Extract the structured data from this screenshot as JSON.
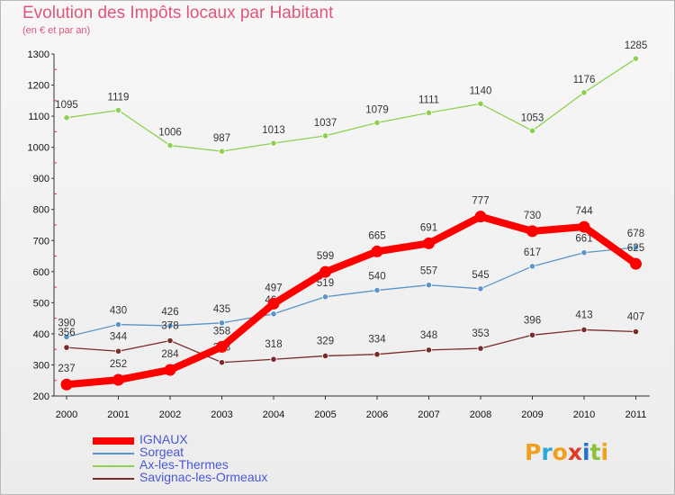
{
  "title": "Evolution des Impôts locaux par Habitant",
  "subtitle": "(en € et par an)",
  "logo": {
    "letters": [
      "P",
      "r",
      "o",
      "x",
      "i",
      "t",
      "i"
    ],
    "colors": [
      "#f0a020",
      "#2fa8d8",
      "#f0a020",
      "#e23a2a",
      "#1f74c8",
      "#8ac23c",
      "#f0a020"
    ]
  },
  "chart_data": {
    "type": "line",
    "x": [
      "2000",
      "2001",
      "2002",
      "2003",
      "2004",
      "2005",
      "2006",
      "2007",
      "2008",
      "2009",
      "2010",
      "2011"
    ],
    "ylim": [
      200,
      1300
    ],
    "yticks": [
      200,
      300,
      400,
      500,
      600,
      700,
      800,
      900,
      1000,
      1100,
      1200,
      1300
    ],
    "grid": false,
    "legend_position": "bottom-left",
    "series": [
      {
        "name": "IGNAUX",
        "color": "#ff0000",
        "values": [
          237,
          252,
          284,
          358,
          497,
          599,
          665,
          691,
          777,
          730,
          744,
          625
        ]
      },
      {
        "name": "Sorgeat",
        "color": "#5b94c8",
        "values": [
          390,
          430,
          426,
          435,
          464,
          519,
          540,
          557,
          545,
          617,
          661,
          678
        ]
      },
      {
        "name": "Ax-les-Thermes",
        "color": "#8fd14f",
        "values": [
          1095,
          1119,
          1006,
          987,
          1013,
          1037,
          1079,
          1111,
          1140,
          1053,
          1176,
          1285
        ]
      },
      {
        "name": "Savignac-les-Ormeaux",
        "color": "#7a2a2a",
        "values": [
          356,
          344,
          378,
          308,
          318,
          329,
          334,
          348,
          353,
          396,
          413,
          407
        ]
      }
    ]
  }
}
